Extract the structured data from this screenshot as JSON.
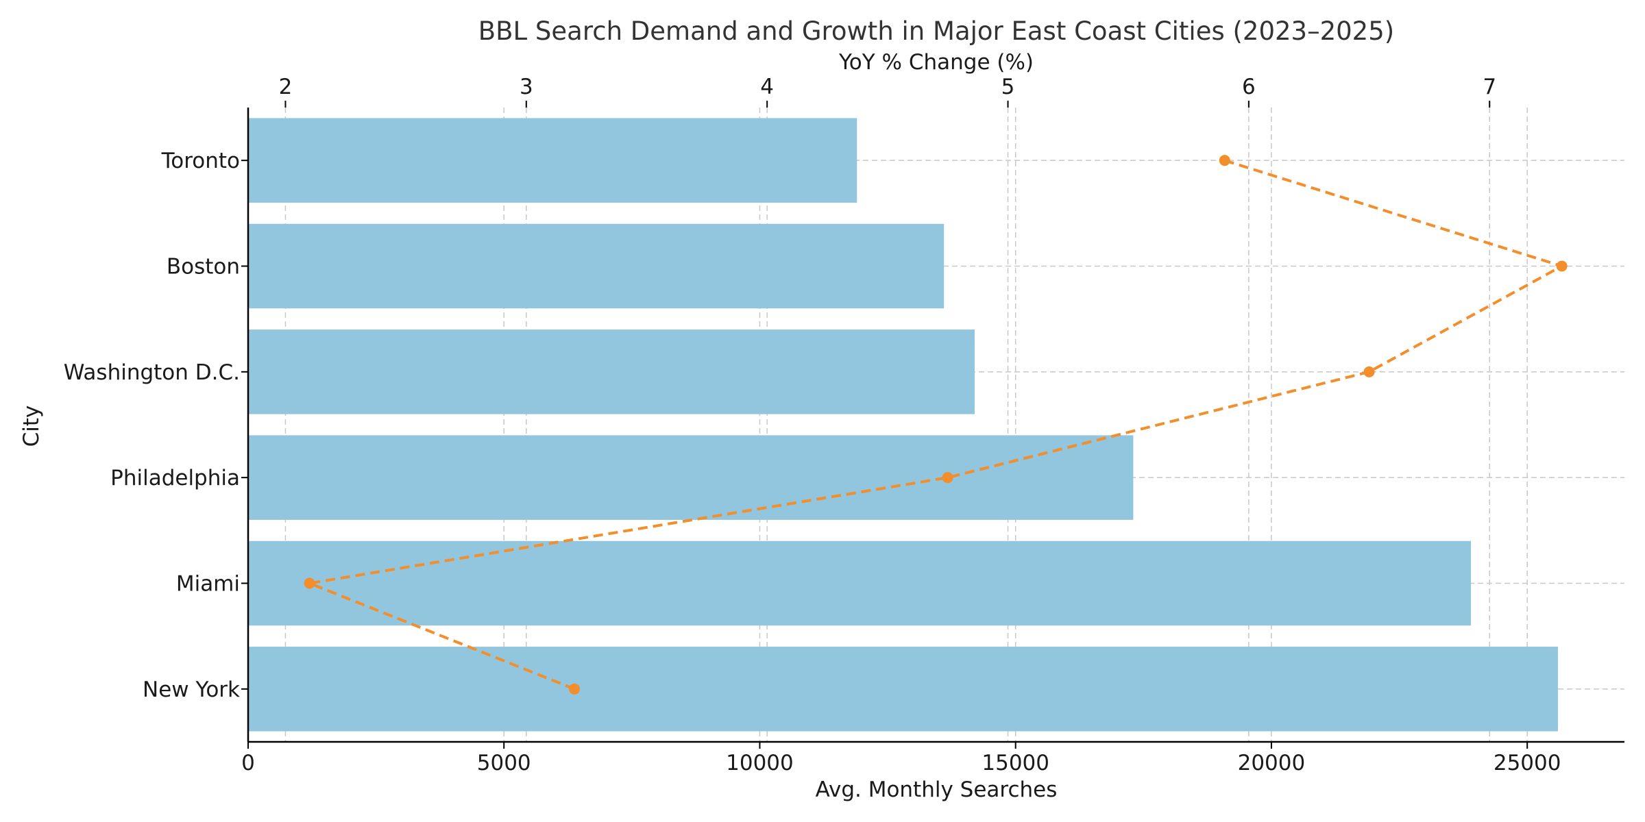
{
  "chart_data": {
    "type": "bar",
    "orientation": "horizontal",
    "title": "BBL Search Demand and Growth in Major East Coast Cities (2023–2025)",
    "categories": [
      "New York",
      "Miami",
      "Philadelphia",
      "Washington D.C.",
      "Boston",
      "Toronto"
    ],
    "ylabel": "City",
    "bar_series": {
      "axis_label": "Avg. Monthly Searches",
      "values": [
        25600,
        23900,
        17300,
        14200,
        13600,
        11900
      ],
      "color": "#92c5de",
      "xlim": [
        0,
        26900
      ],
      "ticks": [
        0,
        5000,
        10000,
        15000,
        20000,
        25000
      ]
    },
    "line_series": {
      "axis_label": "YoY % Change (%)",
      "values": [
        3.2,
        2.1,
        4.75,
        6.5,
        7.3,
        5.9
      ],
      "color": "#f28e2b",
      "style": "dashed with dot markers",
      "xlim": [
        1.845,
        7.56
      ],
      "ticks": [
        2,
        3,
        4,
        5,
        6,
        7
      ]
    },
    "grid": true
  }
}
